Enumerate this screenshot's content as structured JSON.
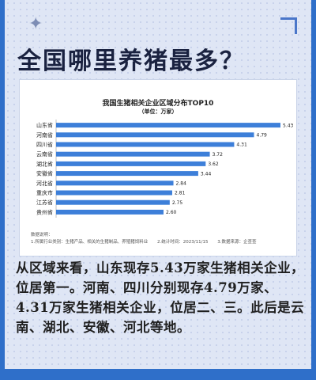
{
  "headline": "全国哪里养猪最多？",
  "chart_data": {
    "type": "bar",
    "orientation": "horizontal",
    "title": "我国生猪相关企业区域分布TOP10",
    "subtitle": "（单位：万家）",
    "categories": [
      "山东省",
      "河南省",
      "四川省",
      "云南省",
      "湖北省",
      "安徽省",
      "河北省",
      "重庆市",
      "江苏省",
      "贵州省"
    ],
    "values": [
      5.43,
      4.79,
      4.31,
      3.72,
      3.62,
      3.44,
      2.84,
      2.81,
      2.75,
      2.6
    ],
    "value_labels": [
      "5.43",
      "4.79",
      "4.31",
      "3.72",
      "3.62",
      "3.44",
      "2.84",
      "2.81",
      "2.75",
      "2.60"
    ],
    "xlim": [
      0,
      5.43
    ],
    "bar_color": "#3d7fd9",
    "grid": false
  },
  "notes": {
    "label": "数据说明：",
    "items": [
      "1.所属行业类别：生猪产品、相关的生猪制品、养殖猪饲料业",
      "2.统计时间：2023/11/15",
      "3.数据来源：企查查"
    ]
  },
  "body_text": "从区域来看，山东现存5.43万家生猪相关企业，位居第一。河南、四川分别现存4.79万家、4.31万家生猪相关企业，位居二、三。此后是云南、湖北、安徽、河北等地。",
  "colors": {
    "frame": "#2f6fc9",
    "page_bg": "#dfe6f5",
    "headline": "#1a2240"
  }
}
